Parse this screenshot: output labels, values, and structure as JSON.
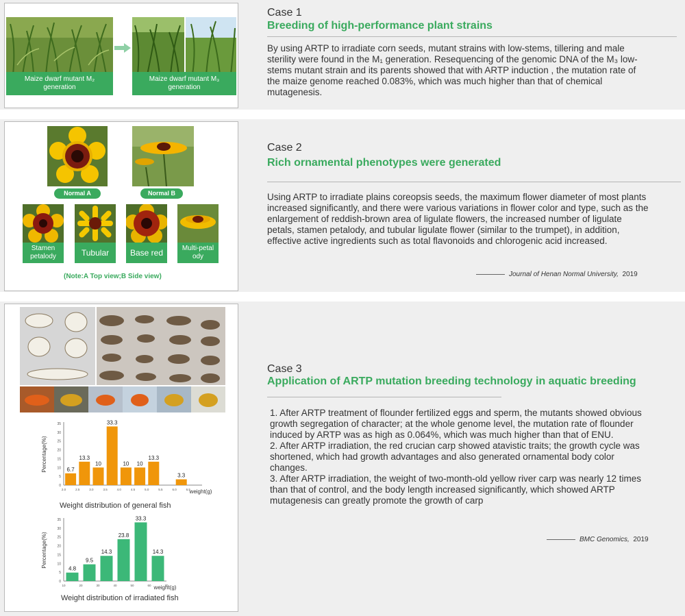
{
  "case1": {
    "label": "Case 1",
    "title": "Breeding of high-performance plant strains",
    "caption_left": "Maize dwarf mutant M₂ generation",
    "caption_right": "Maize dwarf mutant M₃ generation",
    "body": "By using ARTP to irradiate corn seeds, mutant strains with low-stems, tillering and male sterility were found in the M₁ generation. Resequencing of the genomic DNA of the M₃ low-stems mutant strain and its parents showed that with ARTP induction , the mutation rate of the maize genome reached 0.083%, which was much higher than that of chemical mutagenesis."
  },
  "case2": {
    "label": "Case 2",
    "title": "Rich ornamental phenotypes were generated",
    "normal_a": "Normal A",
    "normal_b": "Normal B",
    "variants": [
      "Stamen petalody",
      "Tubular",
      "Base red",
      "Multi-petal ody"
    ],
    "note": "(Note:A Top view;B Side view)",
    "body": "Using ARTP to irradiate plains coreopsis seeds, the maximum flower diameter of most plants increased significantly, and there were various variations in flower color and type, such as the enlargement of reddish-brown area of ligulate flowers, the increased number of ligulate petals, stamen petalody, and tubular ligulate flower (similar to the trumpet), in addition, effective active ingredients such as total flavonoids and chlorogenic acid increased.",
    "citation": "Journal of Henan Normal University,",
    "citation_year": "2019"
  },
  "case3": {
    "label": "Case 3",
    "title": "Application of ARTP mutation breeding technology in aquatic breeding",
    "p1": "1. After ARTP treatment of flounder fertilized eggs and sperm, the mutants showed obvious growth segregation of character; at the whole genome level, the mutation rate of flounder induced by ARTP was as high as 0.064%, which was much higher than that of ENU.",
    "p2": "2. After ARTP irradiation, the red crucian carp showed atavistic traits; the growth cycle was shortened, which had growth advantages and also generated ornamental body color changes.",
    "p3": "3. After ARTP irradiation, the weight of two-month-old yellow river carp was nearly 12 times than that of control, and the body length increased significantly, which showed ARTP mutagenesis can greatly promote the growth of carp",
    "citation": "BMC Genomics,",
    "citation_year": "2019"
  },
  "colors": {
    "green": "#3aaa5e",
    "orange": "#f0960a",
    "chart_green": "#3cb878",
    "panel": "#efefef"
  },
  "chart_data": [
    {
      "type": "bar",
      "title": "Weight distribution of general fish",
      "ylabel": "Percentage(%)",
      "xlabel": "weight(g)",
      "x": [
        "2.0",
        "2.5",
        "3.0",
        "3.5",
        "4.0",
        "4.5",
        "5.0",
        "5.5",
        "6.0",
        "6.5"
      ],
      "categories": [
        "2.0-2.5",
        "2.5-3.0",
        "3.0-3.5",
        "3.5-4.0",
        "4.0-4.5",
        "4.5-5.0",
        "5.0-5.5",
        "6.0-6.5"
      ],
      "values": [
        6.7,
        13.3,
        10,
        33.3,
        10,
        10,
        13.3,
        3.3
      ],
      "labels": [
        "6.7",
        "13.3",
        "10",
        "33.3",
        "10",
        "10",
        "13.3",
        "3.3"
      ],
      "color": "#f0960a",
      "ylim": [
        0,
        35
      ],
      "yticks": [
        "0",
        "5",
        "10",
        "15",
        "20",
        "25",
        "30",
        "35"
      ]
    },
    {
      "type": "bar",
      "title": "Weight distribution of irradiated fish",
      "ylabel": "Percentage(%)",
      "xlabel": "weight(g)",
      "x": [
        "10",
        "20",
        "30",
        "40",
        "50",
        "60",
        "70"
      ],
      "categories": [
        "10-20",
        "20-30",
        "30-40",
        "40-50",
        "50-60",
        "60-70"
      ],
      "values": [
        4.8,
        9.5,
        14.3,
        23.8,
        33.3,
        14.3
      ],
      "labels": [
        "4.8",
        "9.5",
        "14.3",
        "23.8",
        "33.3",
        "14.3"
      ],
      "color": "#3cb878",
      "ylim": [
        0,
        35
      ],
      "yticks": [
        "0",
        "5",
        "10",
        "15",
        "20",
        "25",
        "30",
        "35"
      ]
    }
  ]
}
